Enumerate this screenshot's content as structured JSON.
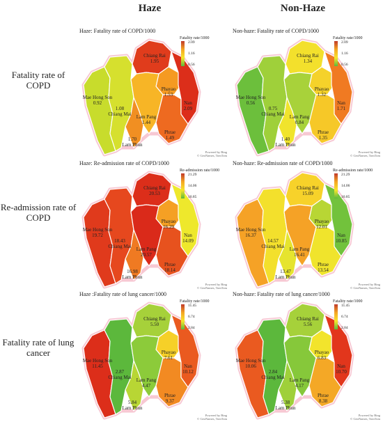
{
  "columns": {
    "haze": "Haze",
    "nonhaze": "Non-Haze"
  },
  "rows": [
    {
      "label": "Fatality rate of COPD"
    },
    {
      "label": "Re-admission rate of COPD"
    },
    {
      "label": "Fatality rate of lung cancer"
    }
  ],
  "credit": {
    "line1": "Powered by Bing",
    "line2": "© GeoNames, TomTom"
  },
  "provinces": [
    "Chiang Rai",
    "Mae Hong Son",
    "Chiang Mai",
    "Phayao",
    "Lam Pang",
    "Lam Phun",
    "Phrae",
    "Nan"
  ],
  "panels": [
    {
      "title": "Haze: Fatality rate of COPD/1000",
      "legend": {
        "title": "Fatality rate/1000",
        "max": "2.09",
        "mid": "1.16",
        "min": "0.56"
      },
      "values": {
        "Chiang Rai": "1.95",
        "Mae Hong Son": "0.92",
        "Chiang Mai": "1.08",
        "Phayao": "1.53",
        "Lam Pang": "1.44",
        "Lam Phun": "1.70",
        "Phrae": "1.49",
        "Nan": "2.09"
      },
      "colors": {
        "Chiang Rai": "#e03c1c",
        "Mae Hong Son": "#c8dc2c",
        "Chiang Mai": "#d6e02e",
        "Phayao": "#f59a22",
        "Lam Pang": "#f7b526",
        "Lam Phun": "#f18f22",
        "Phrae": "#ee6a20",
        "Nan": "#dc2e1a"
      }
    },
    {
      "title": "Non-haze: Fatality rate of COPD/1000",
      "legend": {
        "title": "Fatality rate/1000",
        "max": "2.09",
        "mid": "1.16",
        "min": "0.56"
      },
      "values": {
        "Chiang Rai": "1.34",
        "Mae Hong Son": "0.56",
        "Chiang Mai": "0.75",
        "Phayao": "1.32",
        "Lam Pang": "0.84",
        "Lam Phun": "1.40",
        "Phrae": "1.35",
        "Nan": "1.71"
      },
      "colors": {
        "Chiang Rai": "#f3e02c",
        "Mae Hong Son": "#6cbf3c",
        "Chiang Mai": "#9fd03a",
        "Phayao": "#f5d22a",
        "Lam Pang": "#a8d23a",
        "Lam Phun": "#f0e42c",
        "Phrae": "#f6c828",
        "Nan": "#f07a22"
      }
    },
    {
      "title": "Haze: Re-admission rate of COPD/1000",
      "legend": {
        "title": "Re-admission rate/1000",
        "max": "21.29",
        "mid": "14.06",
        "min": "10.85"
      },
      "values": {
        "Chiang Rai": "20.53",
        "Mae Hong Son": "19.72",
        "Chiang Mai": "18.43",
        "Phayao": "16.29",
        "Lam Pang": "20.57",
        "Lam Phun": "16.98",
        "Phrae": "18.14",
        "Nan": "14.09"
      },
      "colors": {
        "Chiang Rai": "#dc2e1a",
        "Mae Hong Son": "#e03a1c",
        "Chiang Mai": "#e6481e",
        "Phayao": "#f5a024",
        "Lam Pang": "#da2a1a",
        "Lam Phun": "#ef7a22",
        "Phrae": "#e7521e",
        "Nan": "#eee82c"
      }
    },
    {
      "title": "Non-haze: Re-admission rate of COPD/1000",
      "legend": {
        "title": "Re-admission rate/1000",
        "max": "21.29",
        "mid": "14.06",
        "min": "10.85"
      },
      "values": {
        "Chiang Rai": "15.09",
        "Mae Hong Son": "16.37",
        "Chiang Mai": "14.57",
        "Phayao": "12.01",
        "Lam Pang": "16.41",
        "Lam Phun": "13.47",
        "Phrae": "13.54",
        "Nan": "10.85"
      },
      "colors": {
        "Chiang Rai": "#f7d22a",
        "Mae Hong Son": "#f5a226",
        "Chiang Mai": "#f3e02c",
        "Phayao": "#b8d634",
        "Lam Pang": "#f5a226",
        "Lam Phun": "#e6e42e",
        "Phrae": "#f0e42c",
        "Nan": "#72c23c"
      }
    },
    {
      "title": "Haze :Fatality rate of lung cancer/1000",
      "legend": {
        "title": "Fatality rate/1000",
        "max": "11.45",
        "mid": "6.74",
        "min": "2.84"
      },
      "values": {
        "Chiang Rai": "5.50",
        "Mae Hong Son": "11.45",
        "Chiang Mai": "2.87",
        "Phayao": "7.61",
        "Lam Pang": "4.47",
        "Lam Phun": "5.84",
        "Phrae": "9.37",
        "Nan": "10.12"
      },
      "colors": {
        "Chiang Rai": "#a6d13a",
        "Mae Hong Son": "#dc2e1a",
        "Chiang Mai": "#5cb83c",
        "Phayao": "#f6d028",
        "Lam Pang": "#8ccb3a",
        "Lam Phun": "#b8d634",
        "Phrae": "#f28a22",
        "Nan": "#ea5a20"
      }
    },
    {
      "title": "Non-haze: Fatality rate of lung cancer/1000",
      "legend": {
        "title": "Fatality rate/1000",
        "max": "11.45",
        "mid": "6.74",
        "min": "2.84"
      },
      "values": {
        "Chiang Rai": "5.56",
        "Mae Hong Son": "10.06",
        "Chiang Mai": "2.84",
        "Phayao": "6.83",
        "Lam Pang": "4.17",
        "Lam Phun": "5.38",
        "Phrae": "8.38",
        "Nan": "10.70"
      },
      "colors": {
        "Chiang Rai": "#a6d13a",
        "Mae Hong Son": "#ea5a20",
        "Chiang Mai": "#5cb83c",
        "Phayao": "#f2e42c",
        "Lam Pang": "#86c83a",
        "Lam Phun": "#9fd03a",
        "Phrae": "#f4a826",
        "Nan": "#e2361c"
      }
    }
  ]
}
